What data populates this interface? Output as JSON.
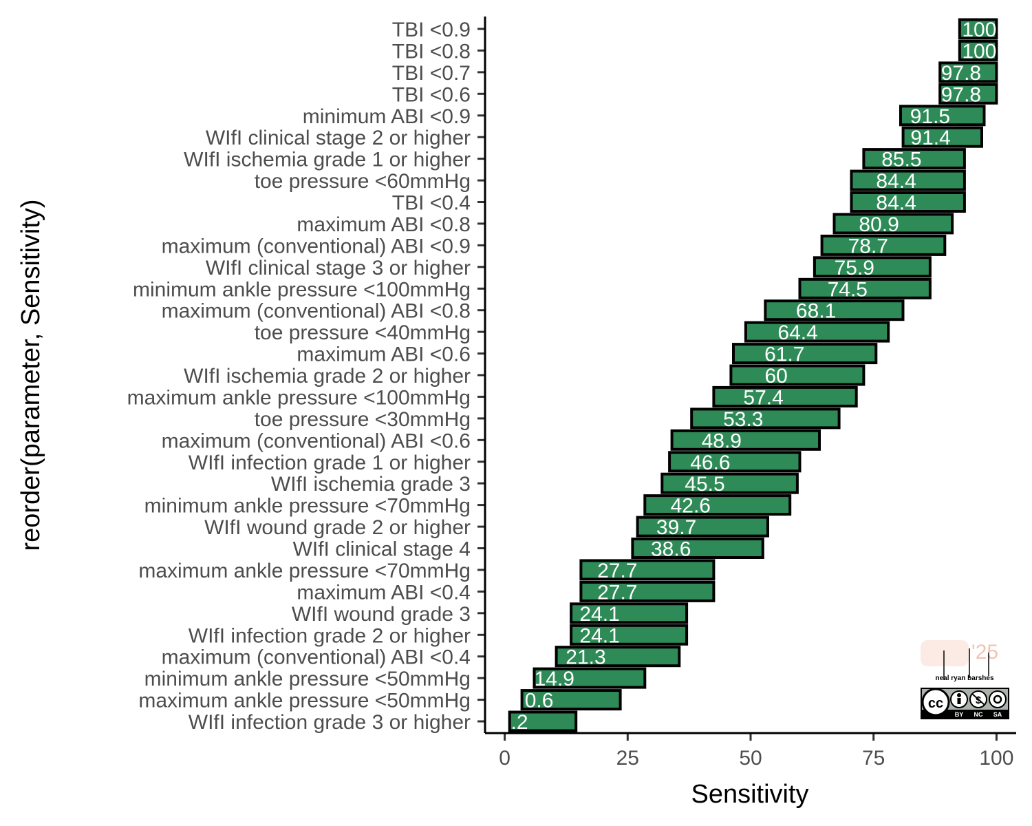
{
  "chart_data": {
    "type": "bar",
    "orientation": "horizontal",
    "xlabel": "Sensitivity",
    "ylabel": "reorder(parameter, Sensitivity)",
    "xlim": [
      -4,
      104
    ],
    "x_ticks": [
      0,
      25,
      50,
      75,
      100
    ],
    "grid": false,
    "legend": "none",
    "bar_color": "#2e8b57",
    "outline_color": "#000000",
    "label_color": "#ffffff",
    "bars": [
      {
        "category": "TBI <0.9",
        "start": 92.5,
        "end": 100,
        "label": "100",
        "label_x": 96.5
      },
      {
        "category": "TBI <0.8",
        "start": 92.5,
        "end": 100,
        "label": "100",
        "label_x": 96.5
      },
      {
        "category": "TBI <0.7",
        "start": 88.5,
        "end": 100,
        "label": "97.8",
        "label_x": 92.8
      },
      {
        "category": "TBI <0.6",
        "start": 88.5,
        "end": 100,
        "label": "97.8",
        "label_x": 92.8
      },
      {
        "category": "minimum ABI <0.9",
        "start": 80.5,
        "end": 97.5,
        "label": "91.5",
        "label_x": 86.5
      },
      {
        "category": "WIfI clinical stage 2 or higher",
        "start": 81,
        "end": 97,
        "label": "91.4",
        "label_x": 86.6
      },
      {
        "category": "WIfI ischemia grade 1 or higher",
        "start": 73,
        "end": 93.5,
        "label": "85.5",
        "label_x": 80.7
      },
      {
        "category": "toe pressure <60mmHg",
        "start": 70.5,
        "end": 93.5,
        "label": "84.4",
        "label_x": 79.6
      },
      {
        "category": "TBI <0.4",
        "start": 70.5,
        "end": 93.5,
        "label": "84.4",
        "label_x": 79.6
      },
      {
        "category": "maximum ABI <0.8",
        "start": 67,
        "end": 91,
        "label": "80.9",
        "label_x": 76.1
      },
      {
        "category": "maximum (conventional) ABI <0.9",
        "start": 64.5,
        "end": 89.5,
        "label": "78.7",
        "label_x": 73.9
      },
      {
        "category": "WIfI clinical stage 3 or higher",
        "start": 63,
        "end": 86.5,
        "label": "75.9",
        "label_x": 71.1
      },
      {
        "category": "minimum ankle pressure <100mmHg",
        "start": 60,
        "end": 86.5,
        "label": "74.5",
        "label_x": 69.7
      },
      {
        "category": "maximum (conventional) ABI <0.8",
        "start": 53,
        "end": 81,
        "label": "68.1",
        "label_x": 63.3
      },
      {
        "category": "toe pressure <40mmHg",
        "start": 49,
        "end": 78,
        "label": "64.4",
        "label_x": 59.6
      },
      {
        "category": "maximum ABI <0.6",
        "start": 46.5,
        "end": 75.5,
        "label": "61.7",
        "label_x": 56.9
      },
      {
        "category": "WIfI ischemia grade 2 or higher",
        "start": 46,
        "end": 73,
        "label": "60",
        "label_x": 55.2
      },
      {
        "category": "maximum ankle pressure <100mmHg",
        "start": 42.5,
        "end": 71.5,
        "label": "57.4",
        "label_x": 52.6
      },
      {
        "category": "toe pressure <30mmHg",
        "start": 38,
        "end": 68,
        "label": "53.3",
        "label_x": 48.5
      },
      {
        "category": "maximum (conventional) ABI <0.6",
        "start": 34,
        "end": 64,
        "label": "48.9",
        "label_x": 44.1
      },
      {
        "category": "WIfI infection grade 1 or higher",
        "start": 33.5,
        "end": 60,
        "label": "46.6",
        "label_x": 41.8
      },
      {
        "category": "WIfI ischemia grade 3",
        "start": 32,
        "end": 59.5,
        "label": "45.5",
        "label_x": 40.7
      },
      {
        "category": "minimum ankle pressure <70mmHg",
        "start": 28.5,
        "end": 58,
        "label": "42.6",
        "label_x": 37.8
      },
      {
        "category": "WIfI wound grade 2 or higher",
        "start": 27,
        "end": 53.5,
        "label": "39.7",
        "label_x": 34.9
      },
      {
        "category": "WIfI clinical stage 4",
        "start": 26,
        "end": 52.5,
        "label": "38.6",
        "label_x": 33.8
      },
      {
        "category": "maximum ankle pressure <70mmHg",
        "start": 15.5,
        "end": 42.5,
        "label": "27.7",
        "label_x": 22.9
      },
      {
        "category": "maximum ABI <0.4",
        "start": 15.5,
        "end": 42.5,
        "label": "27.7",
        "label_x": 22.9
      },
      {
        "category": "WIfI wound grade 3",
        "start": 13.5,
        "end": 37,
        "label": "24.1",
        "label_x": 19.3
      },
      {
        "category": "WIfI infection grade 2 or higher",
        "start": 13.5,
        "end": 37,
        "label": "24.1",
        "label_x": 19.3
      },
      {
        "category": "maximum (conventional) ABI <0.4",
        "start": 10.5,
        "end": 35.5,
        "label": "21.3",
        "label_x": 16.5
      },
      {
        "category": "minimum ankle pressure <50mmHg",
        "start": 6,
        "end": 28.5,
        "label": "14.9",
        "label_x": 10.1
      },
      {
        "category": "maximum ankle pressure <50mmHg",
        "start": 3.5,
        "end": 23.5,
        "label": "0.6",
        "label_x": 7.0
      },
      {
        "category": "WIfI infection grade 3 or higher",
        "start": 1,
        "end": 14.5,
        "label": ".2",
        "label_x": 3.0
      }
    ]
  },
  "watermark": {
    "name_text": "neal ryan barshes",
    "year_text": "'25",
    "license_labels": [
      "BY",
      "NC",
      "SA"
    ],
    "license_icon": "cc-by-nc-sa-icon"
  }
}
